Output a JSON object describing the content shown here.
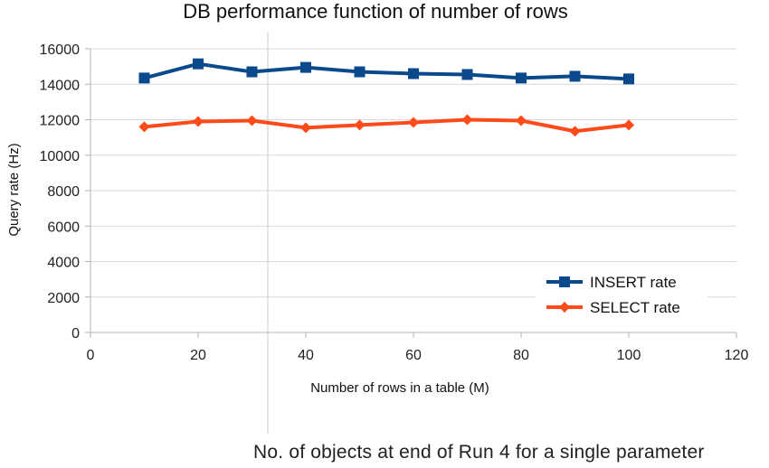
{
  "chart_data": {
    "type": "line",
    "title": "DB performance function of number of rows",
    "xlabel": "Number of rows in a table (M)",
    "ylabel": "Query rate (Hz)",
    "xlim": [
      0,
      120
    ],
    "ylim": [
      0,
      16000
    ],
    "xticks": [
      0,
      20,
      40,
      60,
      80,
      100,
      120
    ],
    "yticks": [
      0,
      2000,
      4000,
      6000,
      8000,
      10000,
      12000,
      14000,
      16000
    ],
    "grid": "horizontal",
    "legend_position": "bottom-right",
    "x": [
      10,
      20,
      30,
      40,
      50,
      60,
      70,
      80,
      90,
      100
    ],
    "series": [
      {
        "name": "INSERT rate",
        "color": "#0a4a8c",
        "marker": "square",
        "values": [
          14350,
          15150,
          14700,
          14950,
          14700,
          14600,
          14550,
          14350,
          14450,
          14300
        ]
      },
      {
        "name": "SELECT rate",
        "color": "#ff4a1a",
        "marker": "diamond",
        "values": [
          11600,
          11900,
          11950,
          11550,
          11700,
          11850,
          12000,
          11950,
          11350,
          11700
        ]
      }
    ]
  },
  "caption": "No. of objects at end of Run 4 for a single parameter"
}
